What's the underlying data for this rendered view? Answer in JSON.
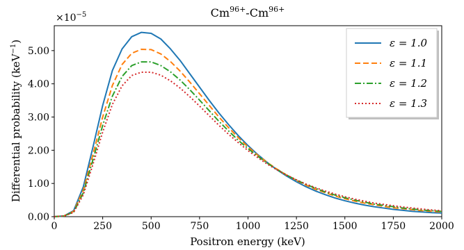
{
  "chart_data": {
    "type": "line",
    "title": {
      "base1": "Cm",
      "sup1": "96+",
      "sep": "-",
      "base2": "Cm",
      "sup2": "96+"
    },
    "xlabel": "Positron energy (keV)",
    "ylabel": "Differential probability (keV",
    "ylabel_sup": "−1",
    "ylabel_end": ")",
    "y_offset_text": {
      "base": "×10",
      "exp": "−5"
    },
    "xlim": [
      0,
      2000
    ],
    "ylim": [
      0,
      5.75
    ],
    "x_ticks": [
      0,
      250,
      500,
      750,
      1000,
      1250,
      1500,
      1750,
      2000
    ],
    "x_tick_labels": [
      "0",
      "250",
      "500",
      "750",
      "1000",
      "1250",
      "1500",
      "1750",
      "2000"
    ],
    "y_ticks": [
      0,
      1,
      2,
      3,
      4,
      5
    ],
    "y_tick_labels": [
      "0.00",
      "1.00",
      "2.00",
      "3.00",
      "4.00",
      "5.00"
    ],
    "legend_position": "top-right",
    "x": [
      0,
      50,
      100,
      150,
      200,
      250,
      300,
      350,
      400,
      450,
      500,
      550,
      600,
      650,
      700,
      750,
      800,
      850,
      900,
      950,
      1000,
      1050,
      1100,
      1150,
      1200,
      1250,
      1300,
      1350,
      1400,
      1450,
      1500,
      1550,
      1600,
      1650,
      1700,
      1750,
      1800,
      1850,
      1900,
      1950,
      2000
    ],
    "series": [
      {
        "name": "ε = 1.0",
        "color": "#1f77b4",
        "dash": "solid",
        "values": [
          0.0,
          0.02,
          0.18,
          0.9,
          2.1,
          3.35,
          4.4,
          5.05,
          5.42,
          5.55,
          5.52,
          5.35,
          5.05,
          4.7,
          4.3,
          3.9,
          3.5,
          3.12,
          2.77,
          2.44,
          2.14,
          1.87,
          1.63,
          1.41,
          1.22,
          1.05,
          0.9,
          0.77,
          0.66,
          0.56,
          0.48,
          0.41,
          0.35,
          0.3,
          0.26,
          0.22,
          0.19,
          0.16,
          0.14,
          0.12,
          0.11
        ]
      },
      {
        "name": "ε = 1.1",
        "color": "#ff7f0e",
        "dash": "dashed",
        "values": [
          0.0,
          0.02,
          0.16,
          0.8,
          1.88,
          3.0,
          3.95,
          4.58,
          4.92,
          5.04,
          5.03,
          4.9,
          4.67,
          4.38,
          4.05,
          3.7,
          3.35,
          3.0,
          2.68,
          2.38,
          2.1,
          1.85,
          1.63,
          1.43,
          1.25,
          1.09,
          0.95,
          0.82,
          0.72,
          0.62,
          0.54,
          0.47,
          0.41,
          0.36,
          0.31,
          0.27,
          0.24,
          0.21,
          0.18,
          0.16,
          0.14
        ]
      },
      {
        "name": "ε = 1.2",
        "color": "#2ca02c",
        "dash": "dashdot",
        "values": [
          0.0,
          0.02,
          0.14,
          0.72,
          1.72,
          2.75,
          3.63,
          4.22,
          4.55,
          4.66,
          4.66,
          4.55,
          4.36,
          4.11,
          3.82,
          3.51,
          3.19,
          2.87,
          2.58,
          2.3,
          2.05,
          1.82,
          1.61,
          1.42,
          1.25,
          1.1,
          0.97,
          0.85,
          0.74,
          0.65,
          0.57,
          0.5,
          0.44,
          0.38,
          0.34,
          0.3,
          0.26,
          0.23,
          0.2,
          0.18,
          0.16
        ]
      },
      {
        "name": "ε = 1.3",
        "color": "#d62728",
        "dash": "dotted",
        "values": [
          0.0,
          0.02,
          0.13,
          0.66,
          1.58,
          2.55,
          3.38,
          3.94,
          4.25,
          4.35,
          4.35,
          4.26,
          4.09,
          3.87,
          3.61,
          3.33,
          3.04,
          2.75,
          2.48,
          2.23,
          1.99,
          1.78,
          1.58,
          1.41,
          1.25,
          1.11,
          0.98,
          0.87,
          0.77,
          0.68,
          0.6,
          0.53,
          0.47,
          0.41,
          0.37,
          0.33,
          0.29,
          0.26,
          0.23,
          0.2,
          0.18
        ]
      }
    ]
  }
}
